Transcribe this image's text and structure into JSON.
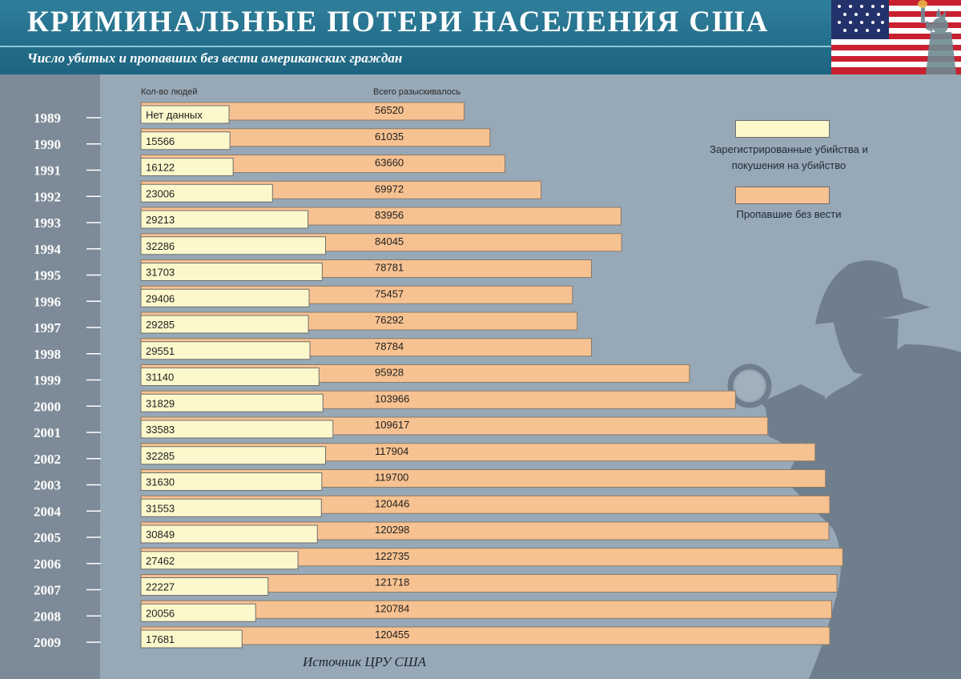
{
  "header": {
    "title": "КРИМИНАЛЬНЫЕ ПОТЕРИ НАСЕЛЕНИЯ США",
    "subtitle": "Число убитых и пропавших без вести американских граждан"
  },
  "chart_data": {
    "type": "bar",
    "orientation": "horizontal",
    "categories": [
      "1989",
      "1990",
      "1991",
      "1992",
      "1993",
      "1994",
      "1995",
      "1996",
      "1997",
      "1998",
      "1999",
      "2000",
      "2001",
      "2002",
      "2003",
      "2004",
      "2005",
      "2006",
      "2007",
      "2008",
      "2009"
    ],
    "series": [
      {
        "name": "Зарегистрированные убийства и покушения на убийство",
        "column_header": "Кол-во людей",
        "color": "#fdf8cc",
        "values": [
          null,
          15566,
          16122,
          23006,
          29213,
          32286,
          31703,
          29406,
          29285,
          29551,
          31140,
          31829,
          33583,
          32285,
          31630,
          31553,
          30849,
          27462,
          22227,
          20056,
          17681
        ],
        "labels": [
          "Нет данных",
          "15566",
          "16122",
          "23006",
          "29213",
          "32286",
          "31703",
          "29406",
          "29285",
          "29551",
          "31140",
          "31829",
          "33583",
          "32285",
          "31630",
          "31553",
          "30849",
          "27462",
          "22227",
          "20056",
          "17681"
        ]
      },
      {
        "name": "Пропавшие без вести",
        "column_header": "Всего разыскивалось",
        "color": "#f7c291",
        "values": [
          56520,
          61035,
          63660,
          69972,
          83956,
          84045,
          78781,
          75457,
          76292,
          78784,
          95928,
          103966,
          109617,
          117904,
          119700,
          120446,
          120298,
          122735,
          121718,
          120784,
          120455
        ],
        "labels": [
          "56520",
          "61035",
          "63660",
          "69972",
          "83956",
          "84045",
          "78781",
          "75457",
          "76292",
          "78784",
          "95928",
          "103966",
          "109617",
          "117904",
          "119700",
          "120446",
          "120298",
          "122735",
          "121718",
          "120784",
          "120455"
        ]
      }
    ],
    "legend": [
      {
        "label": "Зарегистрированные убийства и покушения на убийство",
        "color": "#fdf8cc"
      },
      {
        "label": "Пропавшие без вести",
        "color": "#f7c291"
      }
    ],
    "source": "Источник ЦРУ США"
  }
}
